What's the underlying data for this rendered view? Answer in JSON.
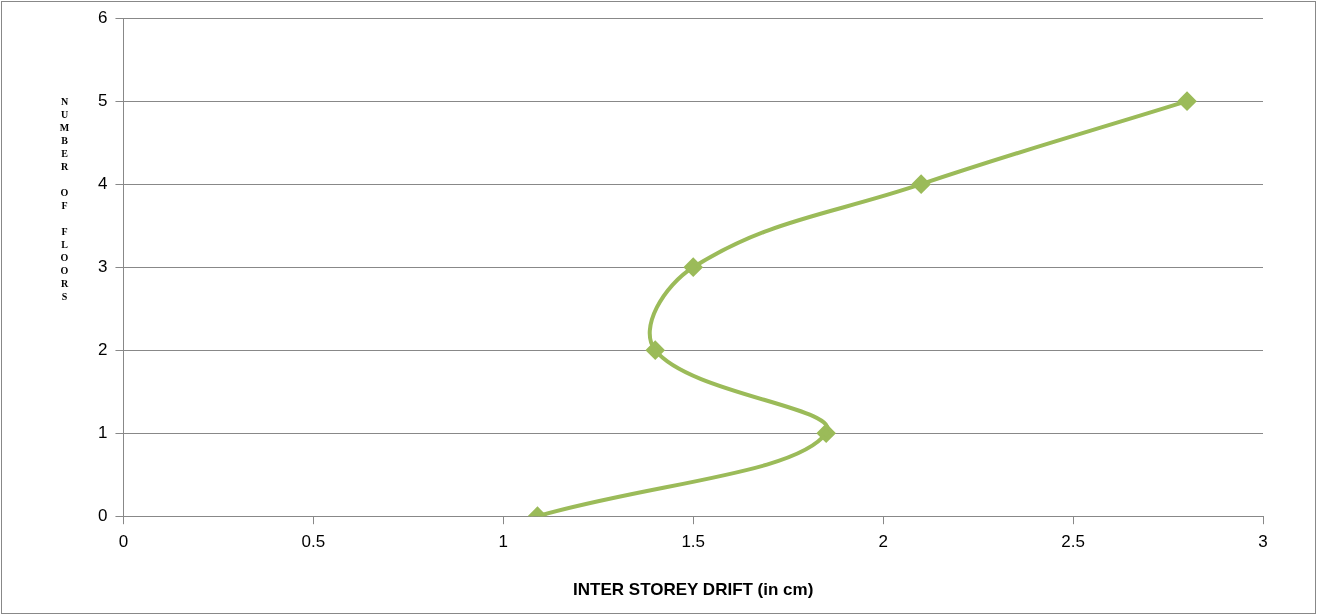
{
  "chart_data": {
    "type": "line",
    "xlabel": "INTER STOREY DRIFT (in cm)",
    "ylabel": "NUMBER OF FLOORS",
    "series": [
      {
        "color": "#9bbb59",
        "x": [
          1.09,
          1.85,
          1.4,
          1.5,
          2.1,
          2.8
        ],
        "values": [
          0,
          1,
          2,
          3,
          4,
          5
        ]
      }
    ],
    "xlim": [
      0,
      3
    ],
    "xticks": [
      0,
      0.5,
      1,
      1.5,
      2,
      2.5,
      3
    ],
    "ylim": [
      0,
      6
    ],
    "yticks": [
      0,
      1,
      2,
      3,
      4,
      5,
      6
    ],
    "grid": "y",
    "legend": false,
    "marker": "diamond",
    "line_style": "solid"
  }
}
